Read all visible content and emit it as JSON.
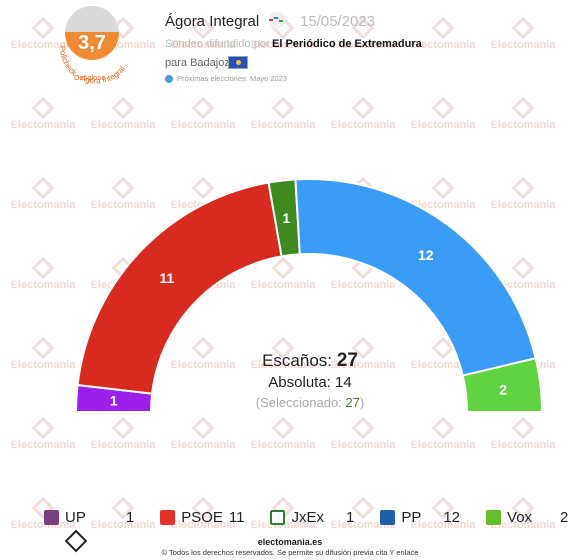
{
  "header": {
    "pollster": "Ágora Integral",
    "date": "15/05/2023",
    "source_prefix": "Sondeo difundido por",
    "source_name": "El Periódico de Extremadura",
    "place": "para Badajoz",
    "next_elections": "Próximas elecciones: Mayo 2023",
    "score": "3,7",
    "score_caption": "Ratio Electomania",
    "score_ring_text": "Pollcheck - Ágora Integral",
    "score_ring_text2": "Desglose"
  },
  "watermark": "Electomania",
  "chart_data": {
    "type": "parliament",
    "total_seats": 27,
    "parties": [
      {
        "name": "UP",
        "seats": 1,
        "color": "#9b1fe8"
      },
      {
        "name": "PSOE",
        "seats": 11,
        "color": "#d72b20"
      },
      {
        "name": "JxEx",
        "seats": 1,
        "color": "#3e8a1f"
      },
      {
        "name": "PP",
        "seats": 12,
        "color": "#3b9cf6"
      },
      {
        "name": "Vox",
        "seats": 2,
        "color": "#5fd440"
      }
    ]
  },
  "center": {
    "seats_label": "Escaños:",
    "seats_total": "27",
    "absolute_label": "Absoluta:",
    "absolute_value": "14",
    "selected_label": "(Seleccionado:",
    "selected_value": "27",
    "selected_close": ")"
  },
  "legend": [
    {
      "name": "UP",
      "value": "1",
      "color": "#7b3f7f",
      "icon": "up-icon"
    },
    {
      "name": "PSOE",
      "value": "11",
      "color": "#e3312b",
      "icon": "psoe-icon"
    },
    {
      "name": "JxEx",
      "value": "1",
      "color": "#2e7d32",
      "icon": "jxex-icon"
    },
    {
      "name": "PP",
      "value": "12",
      "color": "#1d5fa8",
      "icon": "pp-icon"
    },
    {
      "name": "Vox",
      "value": "2",
      "color": "#63be2a",
      "icon": "vox-icon"
    }
  ],
  "footer": {
    "site": "electomania.es",
    "copyright": "© Todos los derechos reservados. Se permite su difusión previa cita Y enlace"
  }
}
